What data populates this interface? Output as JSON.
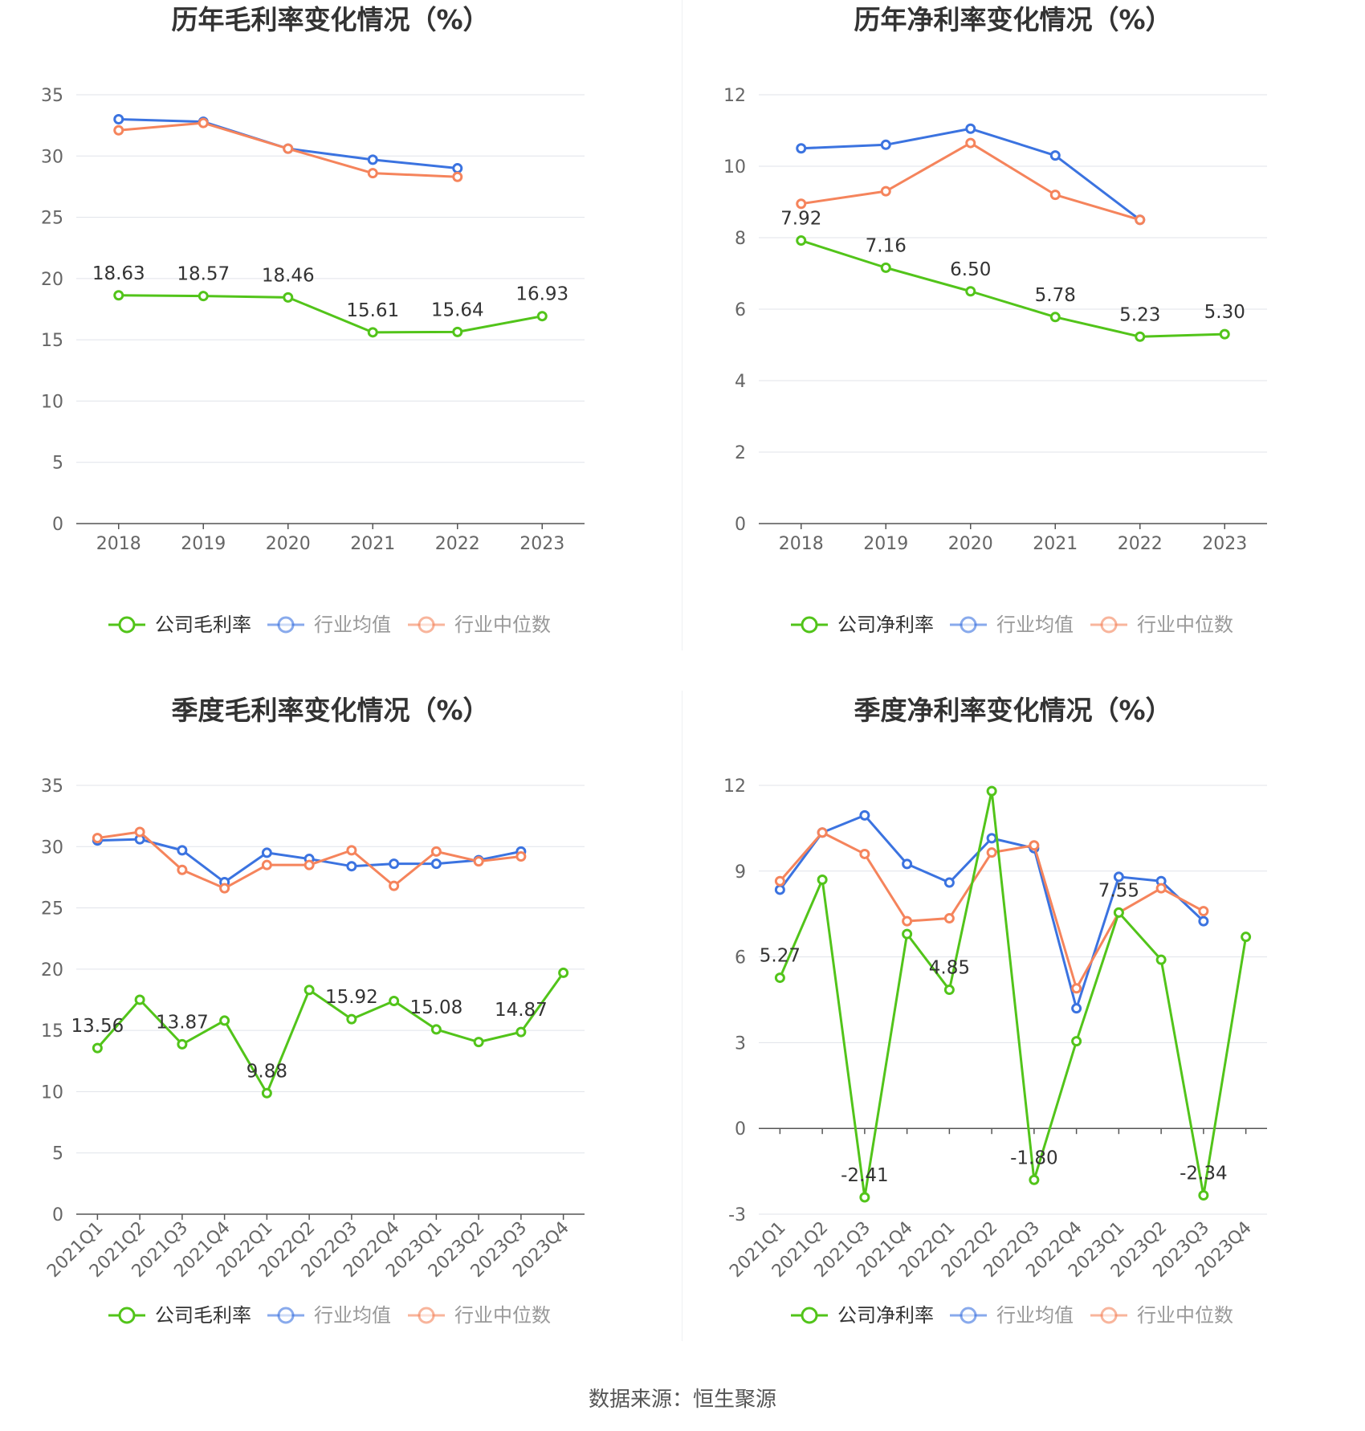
{
  "source": {
    "label": "数据来源：",
    "value": "恒生聚源"
  },
  "colors": {
    "company": "#52c41a",
    "industry_avg": "#3b73e0",
    "industry_median": "#f5845c"
  },
  "chart_data": [
    {
      "type": "line",
      "title": "历年毛利率变化情况（%）",
      "categories": [
        "2018",
        "2019",
        "2020",
        "2021",
        "2022",
        "2023"
      ],
      "ylim": [
        0,
        35
      ],
      "yticks": [
        0,
        5,
        10,
        15,
        20,
        25,
        30,
        35
      ],
      "grid": true,
      "legend": "bottom",
      "rotate_x_labels": false,
      "series": [
        {
          "name": "公司毛利率",
          "color": "#52c41a",
          "values": [
            18.63,
            18.57,
            18.46,
            15.61,
            15.64,
            16.93
          ],
          "labels": [
            "18.63",
            "18.57",
            "18.46",
            "15.61",
            "15.64",
            "16.93"
          ]
        },
        {
          "name": "行业均值",
          "color": "#3b73e0",
          "values": [
            33.0,
            32.8,
            30.6,
            29.7,
            29.0,
            null
          ]
        },
        {
          "name": "行业中位数",
          "color": "#f5845c",
          "values": [
            32.1,
            32.7,
            30.6,
            28.6,
            28.3,
            null
          ]
        }
      ]
    },
    {
      "type": "line",
      "title": "历年净利率变化情况（%）",
      "categories": [
        "2018",
        "2019",
        "2020",
        "2021",
        "2022",
        "2023"
      ],
      "ylim": [
        0,
        12
      ],
      "yticks": [
        0,
        2,
        4,
        6,
        8,
        10,
        12
      ],
      "grid": true,
      "legend": "bottom",
      "rotate_x_labels": false,
      "series": [
        {
          "name": "公司净利率",
          "color": "#52c41a",
          "values": [
            7.92,
            7.16,
            6.5,
            5.78,
            5.23,
            5.3
          ],
          "labels": [
            "7.92",
            "7.16",
            "6.50",
            "5.78",
            "5.23",
            "5.30"
          ]
        },
        {
          "name": "行业均值",
          "color": "#3b73e0",
          "values": [
            10.5,
            10.6,
            11.05,
            10.3,
            8.5,
            null
          ]
        },
        {
          "name": "行业中位数",
          "color": "#f5845c",
          "values": [
            8.95,
            9.3,
            10.65,
            9.2,
            8.5,
            null
          ]
        }
      ]
    },
    {
      "type": "line",
      "title": "季度毛利率变化情况（%）",
      "categories": [
        "2021Q1",
        "2021Q2",
        "2021Q3",
        "2021Q4",
        "2022Q1",
        "2022Q2",
        "2022Q3",
        "2022Q4",
        "2023Q1",
        "2023Q2",
        "2023Q3",
        "2023Q4"
      ],
      "ylim": [
        0,
        35
      ],
      "yticks": [
        0,
        5,
        10,
        15,
        20,
        25,
        30,
        35
      ],
      "grid": true,
      "legend": "bottom",
      "rotate_x_labels": true,
      "series": [
        {
          "name": "公司毛利率",
          "color": "#52c41a",
          "values": [
            13.56,
            17.5,
            13.87,
            15.8,
            9.88,
            18.3,
            15.92,
            17.4,
            15.08,
            14.05,
            14.87,
            19.7
          ],
          "labels": [
            "13.56",
            "",
            "13.87",
            "",
            "9.88",
            "",
            "15.92",
            "",
            "15.08",
            "",
            "14.87",
            ""
          ]
        },
        {
          "name": "行业均值",
          "color": "#3b73e0",
          "values": [
            30.5,
            30.6,
            29.7,
            27.1,
            29.5,
            29.0,
            28.4,
            28.6,
            28.6,
            28.9,
            29.6,
            null
          ]
        },
        {
          "name": "行业中位数",
          "color": "#f5845c",
          "values": [
            30.7,
            31.2,
            28.1,
            26.6,
            28.5,
            28.5,
            29.7,
            26.8,
            29.6,
            28.8,
            29.2,
            null
          ]
        }
      ]
    },
    {
      "type": "line",
      "title": "季度净利率变化情况（%）",
      "categories": [
        "2021Q1",
        "2021Q2",
        "2021Q3",
        "2021Q4",
        "2022Q1",
        "2022Q2",
        "2022Q3",
        "2022Q4",
        "2023Q1",
        "2023Q2",
        "2023Q3",
        "2023Q4"
      ],
      "ylim": [
        -3,
        12
      ],
      "yticks": [
        -3,
        0,
        3,
        6,
        9,
        12
      ],
      "grid": true,
      "legend": "bottom",
      "rotate_x_labels": true,
      "series": [
        {
          "name": "公司净利率",
          "color": "#52c41a",
          "values": [
            5.27,
            8.7,
            -2.41,
            6.8,
            4.85,
            11.8,
            -1.8,
            3.05,
            7.55,
            5.9,
            -2.34,
            6.7
          ],
          "labels": [
            "5.27",
            "",
            "-2.41",
            "",
            "4.85",
            "",
            "-1.80",
            "",
            "7.55",
            "",
            "-2.34",
            ""
          ]
        },
        {
          "name": "行业均值",
          "color": "#3b73e0",
          "values": [
            8.35,
            10.35,
            10.95,
            9.25,
            8.6,
            10.15,
            9.8,
            4.2,
            8.8,
            8.65,
            7.25,
            null
          ]
        },
        {
          "name": "行业中位数",
          "color": "#f5845c",
          "values": [
            8.65,
            10.35,
            9.6,
            7.25,
            7.35,
            9.65,
            9.9,
            4.9,
            7.55,
            8.4,
            7.6,
            null
          ]
        }
      ]
    }
  ]
}
